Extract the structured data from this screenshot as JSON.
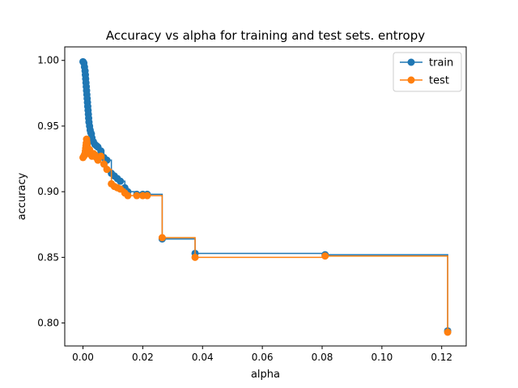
{
  "chart_data": {
    "type": "line",
    "title": "Accuracy vs alpha for training and test sets. entropy",
    "xlabel": "alpha",
    "ylabel": "accuracy",
    "xlim": [
      -0.0061,
      0.1282
    ],
    "ylim": [
      0.7825,
      1.0103
    ],
    "xticks": [
      0.0,
      0.02,
      0.04,
      0.06,
      0.08,
      0.1,
      0.12
    ],
    "xtick_labels": [
      "0.00",
      "0.02",
      "0.04",
      "0.06",
      "0.08",
      "0.10",
      "0.12"
    ],
    "yticks": [
      0.8,
      0.85,
      0.9,
      0.95,
      1.0
    ],
    "ytick_labels": [
      "0.80",
      "0.85",
      "0.90",
      "0.95",
      "1.00"
    ],
    "drawstyle": "steps-post",
    "marker": "circle",
    "grid": false,
    "legend_position": "top-right",
    "series": [
      {
        "name": "train",
        "color": "#1f77b4",
        "x": [
          0.0,
          0.0003,
          0.0005,
          0.0007,
          0.0008,
          0.0009,
          0.001,
          0.0011,
          0.0012,
          0.0013,
          0.0014,
          0.0015,
          0.0016,
          0.0017,
          0.0018,
          0.0019,
          0.002,
          0.0022,
          0.0024,
          0.0026,
          0.0028,
          0.003,
          0.0035,
          0.004,
          0.0045,
          0.005,
          0.006,
          0.007,
          0.008,
          0.0095,
          0.0105,
          0.0115,
          0.0125,
          0.014,
          0.015,
          0.018,
          0.02,
          0.0215,
          0.0265,
          0.0375,
          0.081,
          0.122
        ],
        "y": [
          0.999,
          0.998,
          0.995,
          0.992,
          0.989,
          0.986,
          0.983,
          0.98,
          0.977,
          0.974,
          0.971,
          0.968,
          0.965,
          0.962,
          0.959,
          0.956,
          0.953,
          0.95,
          0.947,
          0.945,
          0.944,
          0.941,
          0.938,
          0.936,
          0.935,
          0.934,
          0.931,
          0.926,
          0.924,
          0.914,
          0.912,
          0.91,
          0.908,
          0.903,
          0.9,
          0.898,
          0.898,
          0.898,
          0.864,
          0.853,
          0.852,
          0.794
        ]
      },
      {
        "name": "test",
        "color": "#ff7f0e",
        "x": [
          0.0,
          0.0003,
          0.0005,
          0.0007,
          0.0008,
          0.0009,
          0.001,
          0.0011,
          0.0012,
          0.0013,
          0.0014,
          0.0015,
          0.0016,
          0.0017,
          0.0018,
          0.0019,
          0.002,
          0.0022,
          0.0024,
          0.0026,
          0.0028,
          0.003,
          0.0035,
          0.004,
          0.0045,
          0.005,
          0.006,
          0.007,
          0.008,
          0.0095,
          0.0105,
          0.0115,
          0.0125,
          0.014,
          0.015,
          0.018,
          0.02,
          0.0215,
          0.0265,
          0.0375,
          0.081,
          0.122
        ],
        "y": [
          0.926,
          0.927,
          0.928,
          0.929,
          0.931,
          0.933,
          0.935,
          0.937,
          0.94,
          0.938,
          0.936,
          0.934,
          0.932,
          0.931,
          0.93,
          0.93,
          0.929,
          0.932,
          0.93,
          0.929,
          0.928,
          0.927,
          0.929,
          0.928,
          0.926,
          0.924,
          0.927,
          0.921,
          0.917,
          0.906,
          0.904,
          0.903,
          0.902,
          0.899,
          0.897,
          0.897,
          0.897,
          0.897,
          0.865,
          0.85,
          0.851,
          0.793
        ]
      }
    ]
  }
}
